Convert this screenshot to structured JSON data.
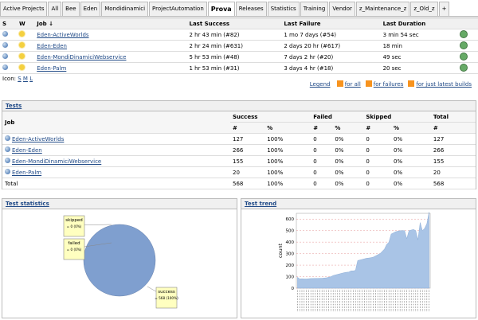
{
  "tabs": {
    "items": [
      "Active Projects",
      "All",
      "Bee",
      "Eden",
      "Mondidinamici",
      "ProjectAutomation",
      "Prova",
      "Releases",
      "Statistics",
      "Training",
      "Vendor",
      "z_Maintenance_z",
      "z_Old_z",
      "+"
    ],
    "active": 6
  },
  "jobs": {
    "headers": [
      "S",
      "W",
      "Job ↓",
      "Last Success",
      "Last Failure",
      "Last Duration"
    ],
    "rows": [
      [
        "Eden-ActiveWorlds",
        "2 hr 43 min (#82)",
        "1 mo 7 days (#54)",
        "3 min 54 sec"
      ],
      [
        "Eden-Eden",
        "2 hr 24 min (#631)",
        "2 days 20 hr (#617)",
        "18 min"
      ],
      [
        "Eden-MondiDinamiciWebservice",
        "5 hr 53 min (#48)",
        "7 days 2 hr (#20)",
        "49 sec"
      ],
      [
        "Eden-Palm",
        "1 hr 53 min (#31)",
        "3 days 4 hr (#18)",
        "20 sec"
      ]
    ]
  },
  "icon_size": {
    "label": "Icon:",
    "options": [
      "S",
      "M",
      "L"
    ]
  },
  "feeds": {
    "legend": "Legend",
    "links": [
      "for all",
      "for failures",
      "for just latest builds"
    ]
  },
  "tests": {
    "title": "Tests",
    "headers": [
      "Job",
      "Success",
      "Failed",
      "Skipped",
      "Total"
    ],
    "subheaders": [
      "#",
      "%",
      "#",
      "%",
      "#",
      "%",
      "#"
    ],
    "rows": [
      [
        "Eden-ActiveWorlds",
        "127",
        "100%",
        "0",
        "0%",
        "0",
        "0%",
        "127"
      ],
      [
        "Eden-Eden",
        "266",
        "100%",
        "0",
        "0%",
        "0",
        "0%",
        "266"
      ],
      [
        "Eden-MondiDinamiciWebservice",
        "155",
        "100%",
        "0",
        "0%",
        "0",
        "0%",
        "155"
      ],
      [
        "Eden-Palm",
        "20",
        "100%",
        "0",
        "0%",
        "0",
        "0%",
        "20"
      ],
      [
        "Total",
        "568",
        "100%",
        "0",
        "0%",
        "0",
        "0%",
        "568"
      ]
    ]
  },
  "chart_data": [
    {
      "type": "pie",
      "title": "Test statistics",
      "categories": [
        "skipped",
        "failed",
        "success"
      ],
      "values": [
        0,
        0,
        568
      ],
      "value_labels": [
        "= 0 (0%)",
        "= 0 (0%)",
        "= 568 (100%)"
      ],
      "color": "#7f9fcf"
    },
    {
      "type": "area",
      "title": "Test trend",
      "ylabel": "count",
      "categories": [
        null,
        null,
        null,
        null,
        null,
        null,
        null,
        null,
        null,
        null,
        null,
        null,
        null,
        null,
        null,
        null,
        null,
        null,
        null,
        null,
        null,
        null,
        null,
        null,
        null,
        null,
        null,
        null,
        null,
        null,
        null,
        null,
        null,
        null,
        null,
        null,
        null,
        null,
        null,
        null,
        null,
        null,
        null,
        null,
        null,
        null,
        null,
        null,
        null,
        null,
        null,
        null,
        null,
        null,
        null,
        null,
        null,
        null,
        null,
        null
      ],
      "values": [
        95,
        80,
        82,
        80,
        80,
        82,
        84,
        84,
        85,
        85,
        86,
        86,
        88,
        90,
        95,
        100,
        110,
        115,
        120,
        125,
        130,
        135,
        138,
        140,
        150,
        150,
        155,
        240,
        245,
        250,
        255,
        260,
        262,
        265,
        270,
        280,
        290,
        300,
        320,
        340,
        380,
        400,
        470,
        480,
        490,
        495,
        500,
        500,
        500,
        430,
        500,
        505,
        510,
        500,
        420,
        570,
        500,
        520,
        560,
        660
      ],
      "color": "#a9c4e6",
      "ylim": [
        0,
        650
      ],
      "yticks": [
        0,
        100,
        200,
        300,
        400,
        500,
        600
      ],
      "grid": true
    }
  ]
}
